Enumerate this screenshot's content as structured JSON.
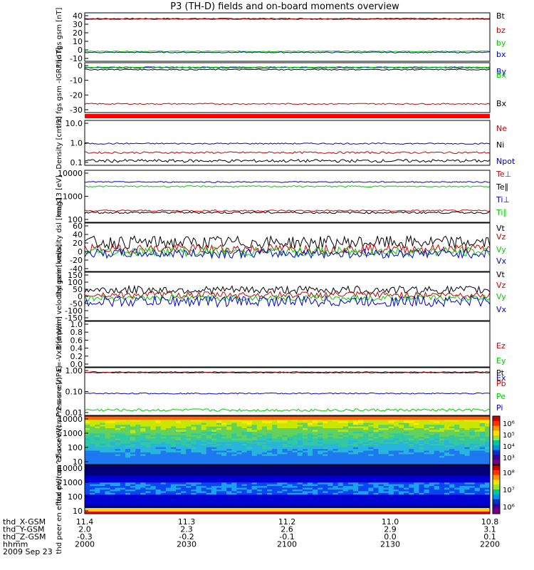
{
  "title": "P3 (TH-D) fields and on-board moments overview",
  "date_label": "2009 Sep 23",
  "orbit_rows": [
    {
      "label": "thd_X-GSM",
      "values": [
        "11.4",
        "11.3",
        "11.2",
        "11.0",
        "10.8"
      ]
    },
    {
      "label": "thd_Y-GSM",
      "values": [
        "2.0",
        "2.3",
        "2.6",
        "2.9",
        "3.1"
      ]
    },
    {
      "label": "thd_Z-GSM",
      "values": [
        "-0.3",
        "-0.2",
        "-0.1",
        "0.0",
        "0.1"
      ]
    },
    {
      "label": "hhmm",
      "values": [
        "2000",
        "2030",
        "2100",
        "2130",
        "2200"
      ]
    }
  ],
  "colors": {
    "black": "#000000",
    "red": "#cc0000",
    "green": "#00cc00",
    "blue": "#0000cc",
    "bar": "#ff0000"
  },
  "chart_data": [
    {
      "type": "line",
      "ylabel": "thd fgs gsm [nT]",
      "yticks": [
        "40",
        "30",
        "20",
        "10",
        "0",
        "-10"
      ],
      "ylim": [
        -10,
        40
      ],
      "x_range": [
        "2000",
        "2200"
      ],
      "series": [
        {
          "name": "Bt",
          "color": "#000000",
          "level": 34,
          "noise": 0.4
        },
        {
          "name": "bz",
          "color": "#cc0000",
          "level": 33.5,
          "noise": 0.4
        },
        {
          "name": "by",
          "color": "#00cc00",
          "level": 0.3,
          "noise": 0.4
        },
        {
          "name": "bx",
          "color": "#0000cc",
          "level": -0.8,
          "noise": 0.5
        }
      ]
    },
    {
      "type": "line",
      "ylabel": "thd fgs gsm -IGRF [nT]",
      "yticks": [
        "0",
        "-10",
        "-20",
        "-30"
      ],
      "ylim": [
        -35,
        5
      ],
      "x_range": [
        "2000",
        "2200"
      ],
      "series": [
        {
          "name": "By",
          "color": "#0000cc",
          "level": 1,
          "noise": 0.4
        },
        {
          "name": "Bx",
          "color": "#00cc00",
          "level": 1.5,
          "noise": 0.4
        },
        {
          "name": "Bx",
          "color": "#000000",
          "level": -0.5,
          "noise": 0.4
        },
        {
          "name": "Bz",
          "color": "#cc0000",
          "level": -28,
          "noise": 0.5
        }
      ]
    },
    {
      "type": "line",
      "ylabel": "Density [cm-3]",
      "yticks": [
        "10.0",
        "1.0",
        "0.1"
      ],
      "yscale": "log",
      "ylim": [
        0.1,
        20
      ],
      "x_range": [
        "2000",
        "2200"
      ],
      "series": [
        {
          "name": "Ne",
          "color": "#cc0000",
          "level": 0.45,
          "noise": 0.05
        },
        {
          "name": "Ni",
          "color": "#000000",
          "level": 0.17,
          "noise": 0.03
        },
        {
          "name": "Npot",
          "color": "#0000cc",
          "level": 1.3,
          "noise": 0.1
        }
      ]
    },
    {
      "type": "line",
      "ylabel": "mag13 [eV]",
      "yticks": [
        "10000",
        "1000",
        "100"
      ],
      "yscale": "log",
      "ylim": [
        50,
        12000
      ],
      "x_range": [
        "2000",
        "2200"
      ],
      "series": [
        {
          "name": "Te⊥",
          "color": "#cc0000",
          "level": 170,
          "noise": 15
        },
        {
          "name": "Te∥",
          "color": "#000000",
          "level": 140,
          "noise": 15
        },
        {
          "name": "Ti⊥",
          "color": "#0000cc",
          "level": 3500,
          "noise": 200
        },
        {
          "name": "Ti∥",
          "color": "#00cc00",
          "level": 2200,
          "noise": 150
        }
      ]
    },
    {
      "type": "line",
      "ylabel": "thd peim velocity dsl [km/s]",
      "yticks": [
        "60",
        "40",
        "20",
        "0",
        "-20",
        "-40"
      ],
      "ylim": [
        -45,
        60
      ],
      "x_range": [
        "2000",
        "2200"
      ],
      "series": [
        {
          "name": "Vt",
          "color": "#000000",
          "level": 18,
          "noise": 14
        },
        {
          "name": "Vz",
          "color": "#cc0000",
          "level": 4,
          "noise": 10
        },
        {
          "name": "Vy",
          "color": "#00cc00",
          "level": -2,
          "noise": 10
        },
        {
          "name": "Vx",
          "color": "#0000cc",
          "level": -6,
          "noise": 10
        }
      ]
    },
    {
      "type": "line",
      "ylabel": "thd peim velocity gsm [km/s]",
      "yticks": [
        "150",
        "100",
        "50",
        "0",
        "-50",
        "-100",
        "-150"
      ],
      "ylim": [
        -150,
        150
      ],
      "x_range": [
        "2000",
        "2200"
      ],
      "series": [
        {
          "name": "Vt",
          "color": "#000000",
          "level": 40,
          "noise": 25
        },
        {
          "name": "Vz",
          "color": "#cc0000",
          "level": 10,
          "noise": 20
        },
        {
          "name": "Vy",
          "color": "#00cc00",
          "level": -10,
          "noise": 18
        },
        {
          "name": "Vx",
          "color": "#0000cc",
          "level": -30,
          "noise": 35
        }
      ]
    },
    {
      "type": "line",
      "ylabel": "E=-VxB [mV/m]",
      "yticks": [
        "1.0",
        "0.8",
        "0.6",
        "0.4",
        "0.2",
        "0.0"
      ],
      "ylim": [
        0,
        1
      ],
      "x_range": [
        "2000",
        "2200"
      ],
      "series": [
        {
          "name": "Ez",
          "color": "#cc0000"
        },
        {
          "name": "Ey",
          "color": "#00cc00"
        },
        {
          "name": "Ex",
          "color": "#0000cc"
        }
      ]
    },
    {
      "type": "line",
      "ylabel": "Pressure [nPa]",
      "yticks": [
        "1.00",
        "0.10",
        "0.01"
      ],
      "yscale": "log",
      "ylim": [
        0.008,
        1.2
      ],
      "x_range": [
        "2000",
        "2200"
      ],
      "series": [
        {
          "name": "Pt",
          "color": "#000000",
          "level": 0.75,
          "noise": 0.03
        },
        {
          "name": "Pb",
          "color": "#cc0000",
          "level": 0.7,
          "noise": 0.03
        },
        {
          "name": "Pe",
          "color": "#00cc00",
          "level": 0.014,
          "noise": 0.002
        },
        {
          "name": "Pi",
          "color": "#0000cc",
          "level": 0.08,
          "noise": 0.005
        }
      ]
    },
    {
      "type": "heatmap",
      "ylabel": "thd peir en eflux eV/(cm^2-s-sr-eV)",
      "yticks": [
        "10000",
        "1000",
        "100",
        "10"
      ],
      "yscale": "log",
      "colorbar_ticks": [
        "10⁶",
        "10⁵",
        "10⁴",
        "10³"
      ],
      "x_range": [
        "2000",
        "2200"
      ]
    },
    {
      "type": "heatmap",
      "ylabel": "thd peer en eflux eV/(cm^2-s-sr-eV)",
      "yticks": [
        "10000",
        "1000",
        "100",
        "10"
      ],
      "yscale": "log",
      "colorbar_ticks": [
        "10⁸",
        "10⁷",
        "10⁶"
      ],
      "x_range": [
        "2000",
        "2200"
      ]
    }
  ]
}
